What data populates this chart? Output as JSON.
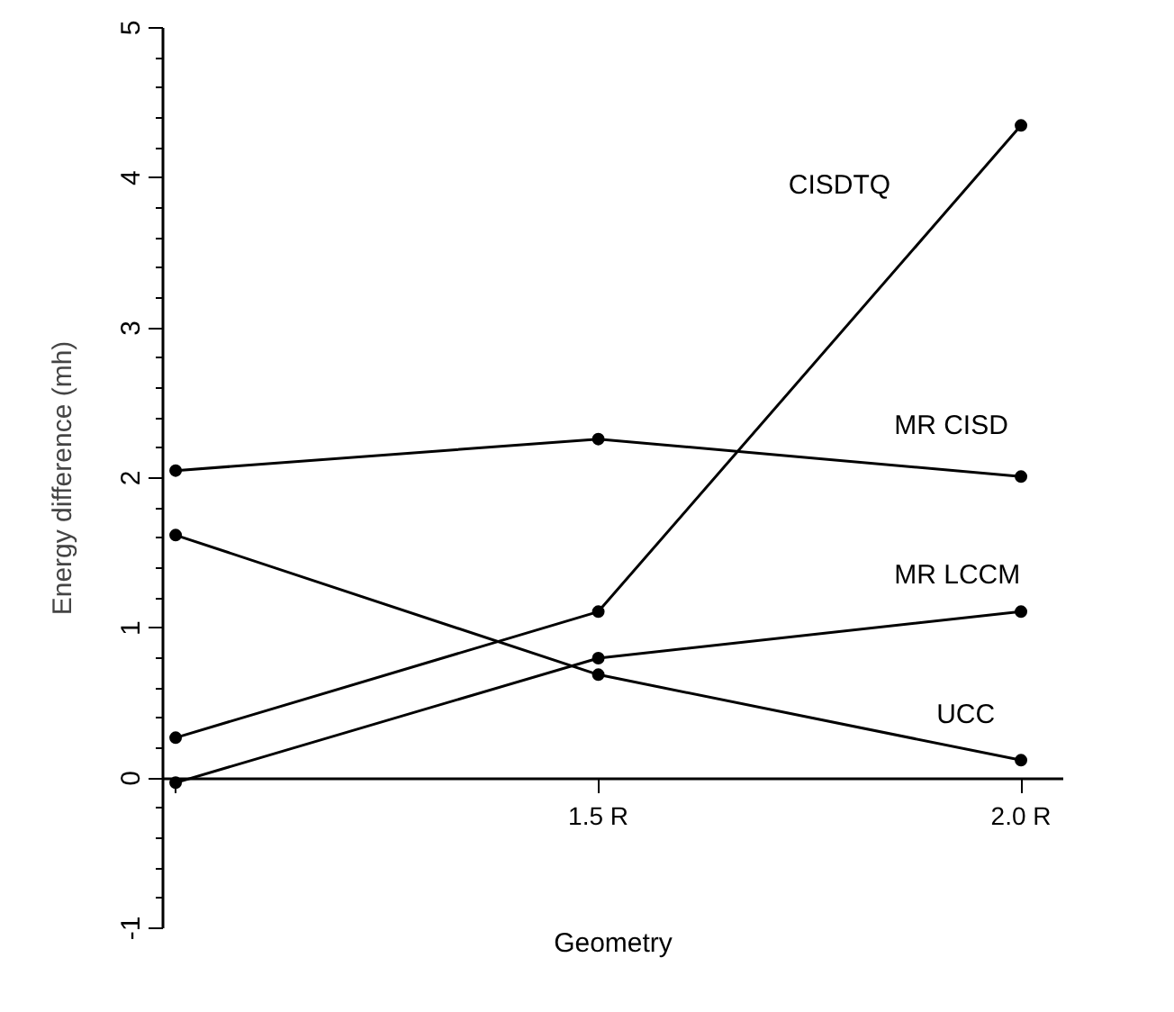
{
  "chart_data": {
    "type": "line",
    "xlabel": "Geometry",
    "ylabel": "Energy difference (mh)",
    "categories": [
      null,
      "1.5 R",
      "2.0 R"
    ],
    "series": [
      {
        "name": "CISDTQ",
        "color": "#000000",
        "values": [
          0.27,
          1.11,
          4.35
        ]
      },
      {
        "name": "MR CISD",
        "color": "#000000",
        "values": [
          2.05,
          2.26,
          2.01
        ]
      },
      {
        "name": "MR LCCM",
        "color": "#000000",
        "values": [
          -0.03,
          0.8,
          1.11
        ]
      },
      {
        "name": "UCC",
        "color": "#000000",
        "values": [
          1.62,
          0.69,
          0.12
        ]
      }
    ],
    "ylim": [
      -1,
      5
    ],
    "yticks": [
      -1,
      0,
      1,
      2,
      3,
      4,
      5
    ],
    "marker": "circle",
    "line_style": "solid",
    "grid": false,
    "legend": false
  }
}
